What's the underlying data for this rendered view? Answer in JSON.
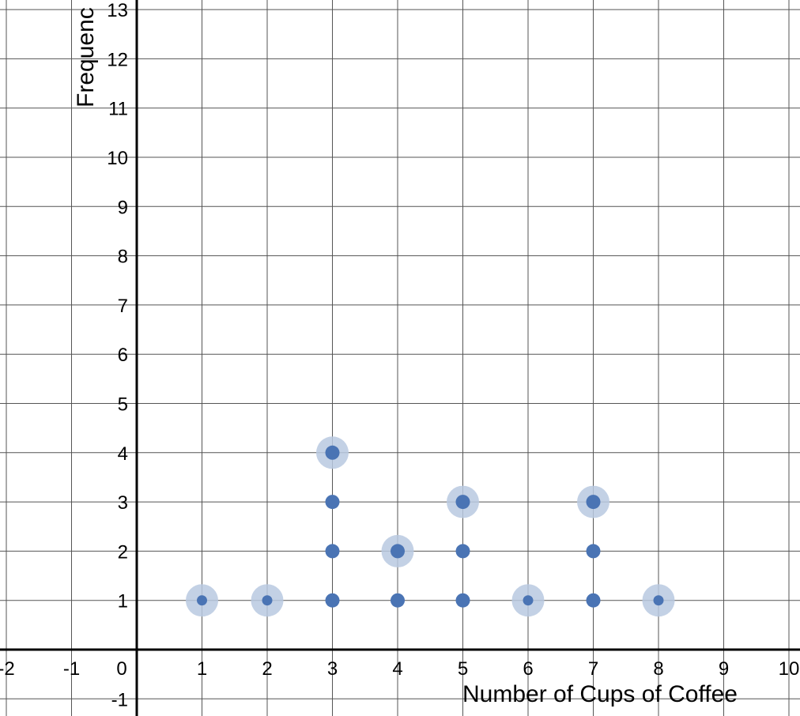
{
  "chart_data": {
    "type": "scatter",
    "subtype": "dot-plot",
    "xlabel": "Number of Cups of Coffee",
    "ylabel": "Frequenc",
    "xlim": [
      -2,
      10
    ],
    "ylim": [
      -1,
      13
    ],
    "x_ticks": [
      -2,
      -1,
      0,
      1,
      2,
      3,
      4,
      5,
      6,
      7,
      8,
      9,
      10
    ],
    "y_ticks": [
      -1,
      1,
      2,
      3,
      4,
      5,
      6,
      7,
      8,
      9,
      10,
      11,
      12,
      13
    ],
    "grid": true,
    "points": [
      {
        "x": 1,
        "y": 1,
        "top": true
      },
      {
        "x": 2,
        "y": 1,
        "top": true
      },
      {
        "x": 3,
        "y": 1,
        "top": false
      },
      {
        "x": 3,
        "y": 2,
        "top": false
      },
      {
        "x": 3,
        "y": 3,
        "top": false
      },
      {
        "x": 3,
        "y": 4,
        "top": true
      },
      {
        "x": 4,
        "y": 1,
        "top": false
      },
      {
        "x": 4,
        "y": 2,
        "top": true
      },
      {
        "x": 5,
        "y": 1,
        "top": false
      },
      {
        "x": 5,
        "y": 2,
        "top": false
      },
      {
        "x": 5,
        "y": 3,
        "top": true
      },
      {
        "x": 6,
        "y": 1,
        "top": true
      },
      {
        "x": 7,
        "y": 1,
        "top": false
      },
      {
        "x": 7,
        "y": 2,
        "top": false
      },
      {
        "x": 7,
        "y": 3,
        "top": true
      },
      {
        "x": 8,
        "y": 1,
        "top": true
      }
    ],
    "colors": {
      "point": "#4a74b4",
      "halo": "#b9c9e1",
      "grid": "#555555",
      "axis": "#000000"
    }
  }
}
